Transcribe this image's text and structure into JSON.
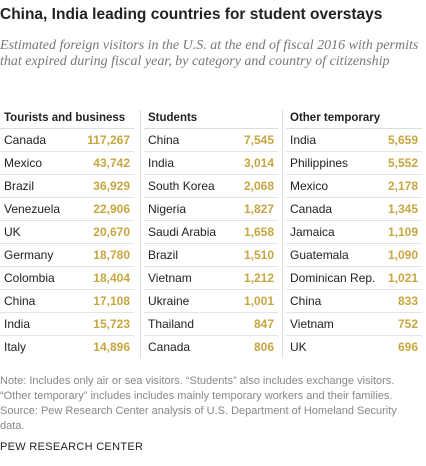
{
  "title": "China, India leading countries for student overstays",
  "subtitle": "Estimated foreign visitors in the U.S. at the end of fiscal 2016 with permits that expired during fiscal year, by category and country of citizenship",
  "groups": [
    {
      "header": "Tourists and business",
      "rows": [
        [
          "Canada",
          "117,267"
        ],
        [
          "Mexico",
          "43,742"
        ],
        [
          "Brazil",
          "36,929"
        ],
        [
          "Venezuela",
          "22,906"
        ],
        [
          "UK",
          "20,670"
        ],
        [
          "Germany",
          "18,780"
        ],
        [
          "Colombia",
          "18,404"
        ],
        [
          "China",
          "17,108"
        ],
        [
          "India",
          "15,723"
        ],
        [
          "Italy",
          "14,896"
        ]
      ]
    },
    {
      "header": "Students",
      "rows": [
        [
          "China",
          "7,545"
        ],
        [
          "India",
          "3,014"
        ],
        [
          "South Korea",
          "2,068"
        ],
        [
          "Nigeria",
          "1,827"
        ],
        [
          "Saudi Arabia",
          "1,658"
        ],
        [
          "Brazil",
          "1,510"
        ],
        [
          "Vietnam",
          "1,212"
        ],
        [
          "Ukraine",
          "1,001"
        ],
        [
          "Thailand",
          "847"
        ],
        [
          "Canada",
          "806"
        ]
      ]
    },
    {
      "header": "Other temporary",
      "rows": [
        [
          "India",
          "5,659"
        ],
        [
          "Philippines",
          "5,552"
        ],
        [
          "Mexico",
          "2,178"
        ],
        [
          "Canada",
          "1,345"
        ],
        [
          "Jamaica",
          "1,109"
        ],
        [
          "Guatemala",
          "1,090"
        ],
        [
          "Dominican Rep.",
          "1,021"
        ],
        [
          "China",
          "833"
        ],
        [
          "Vietnam",
          "752"
        ],
        [
          "UK",
          "696"
        ]
      ]
    }
  ],
  "note": "Note: Includes only air or sea visitors. “Students” also includes exchange visitors. “Other temporary” includes includes mainly temporary workers and their families.",
  "source": "Source: Pew Research Center analysis of U.S. Department of Homeland Security data.",
  "footer": "PEW RESEARCH CENTER"
}
